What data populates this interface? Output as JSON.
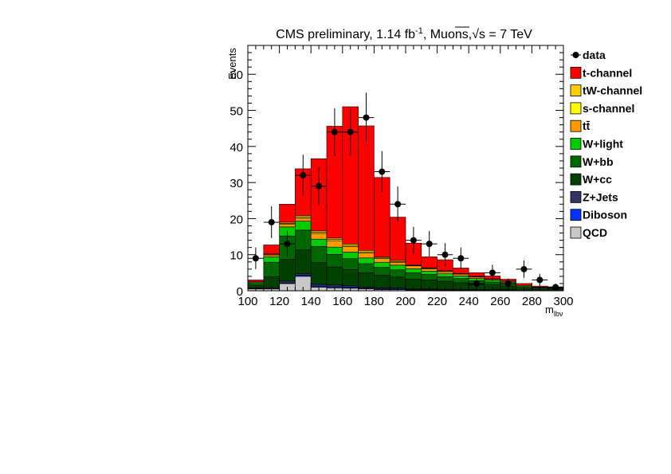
{
  "chart_data": {
    "type": "bar",
    "stacked": true,
    "title_parts": {
      "pre": "CMS preliminary, 1.14 fb",
      "sup": "-1",
      "mid": ", Muons,",
      "sqrt": "√s",
      "post": " = 7 TeV"
    },
    "ylabel": "Events",
    "xlabel_main": "m",
    "xlabel_sub": "lbν",
    "xlim": [
      100,
      300
    ],
    "ylim": [
      0,
      68
    ],
    "x_ticks": [
      "100",
      "120",
      "140",
      "160",
      "180",
      "200",
      "220",
      "240",
      "260",
      "280",
      "300"
    ],
    "y_ticks": [
      "0",
      "10",
      "20",
      "30",
      "40",
      "50",
      "60"
    ],
    "bin_edges": [
      100,
      110,
      120,
      130,
      140,
      150,
      160,
      170,
      180,
      190,
      200,
      210,
      220,
      230,
      240,
      250,
      260,
      270,
      280,
      290,
      300
    ],
    "series": [
      {
        "name": "QCD",
        "color": "#c8c8c8",
        "values": [
          0.5,
          0.5,
          2.0,
          4.0,
          1.0,
          0.8,
          0.7,
          0.5,
          0.3,
          0.3,
          0.2,
          0.2,
          0.1,
          0.1,
          0.1,
          0.1,
          0.1,
          0.0,
          0.0,
          0.0
        ]
      },
      {
        "name": "Diboson",
        "color": "#0033ff",
        "values": [
          0.1,
          0.1,
          0.2,
          0.3,
          0.3,
          0.3,
          0.3,
          0.2,
          0.2,
          0.2,
          0.1,
          0.1,
          0.1,
          0.1,
          0.1,
          0.1,
          0.1,
          0.0,
          0.0,
          0.0
        ]
      },
      {
        "name": "Z+Jets",
        "color": "#333366",
        "values": [
          0.2,
          0.3,
          0.5,
          0.5,
          0.5,
          0.5,
          0.4,
          0.3,
          0.3,
          0.3,
          0.2,
          0.2,
          0.2,
          0.2,
          0.1,
          0.1,
          0.1,
          0.1,
          0.0,
          0.0
        ]
      },
      {
        "name": "W+cc",
        "color": "#004000",
        "values": [
          0.6,
          3.0,
          6.0,
          6.5,
          6.0,
          5.0,
          4.5,
          4.0,
          3.5,
          3.0,
          2.7,
          2.5,
          2.2,
          1.8,
          1.5,
          1.3,
          1.0,
          0.5,
          0.4,
          0.3
        ]
      },
      {
        "name": "W+bb",
        "color": "#006600",
        "values": [
          0.6,
          4.0,
          6.5,
          5.5,
          4.5,
          3.5,
          3.0,
          2.5,
          2.2,
          2.0,
          1.8,
          1.5,
          1.3,
          1.2,
          1.0,
          0.8,
          0.6,
          0.4,
          0.3,
          0.2
        ]
      },
      {
        "name": "W+light",
        "color": "#00cc00",
        "values": [
          0.3,
          1.5,
          2.5,
          2.5,
          2.0,
          2.0,
          1.8,
          1.6,
          1.4,
          1.3,
          1.1,
          0.9,
          0.8,
          0.7,
          0.6,
          0.5,
          0.4,
          0.3,
          0.2,
          0.2
        ]
      },
      {
        "name": "tt̄",
        "color": "#ff9900",
        "values": [
          0.2,
          0.5,
          0.8,
          0.8,
          1.6,
          1.8,
          1.6,
          1.4,
          1.0,
          0.8,
          0.8,
          0.7,
          0.6,
          0.5,
          0.4,
          0.3,
          0.3,
          0.2,
          0.1,
          0.1
        ]
      },
      {
        "name": "s-channel",
        "color": "#ffff00",
        "values": [
          0.0,
          0.1,
          0.2,
          0.3,
          0.3,
          0.3,
          0.3,
          0.3,
          0.2,
          0.2,
          0.1,
          0.1,
          0.1,
          0.1,
          0.1,
          0.0,
          0.0,
          0.0,
          0.0,
          0.0
        ]
      },
      {
        "name": "tW-channel",
        "color": "#ffcc00",
        "values": [
          0.0,
          0.2,
          0.3,
          0.4,
          0.4,
          0.4,
          0.4,
          0.4,
          0.3,
          0.3,
          0.2,
          0.2,
          0.2,
          0.1,
          0.1,
          0.1,
          0.1,
          0.0,
          0.0,
          0.0
        ]
      },
      {
        "name": "t-channel",
        "color": "#ff0000",
        "values": [
          0.5,
          2.5,
          5.0,
          13.0,
          20.0,
          31.0,
          38.0,
          34.5,
          22.0,
          12.0,
          6.0,
          3.0,
          3.0,
          1.5,
          1.0,
          0.8,
          0.5,
          0.5,
          0.3,
          0.3
        ]
      }
    ],
    "data_points": {
      "name": "data",
      "x": [
        105,
        115,
        125,
        135,
        145,
        155,
        165,
        175,
        185,
        195,
        205,
        215,
        225,
        235,
        245,
        255,
        265,
        275,
        285,
        295
      ],
      "y": [
        9,
        19,
        13,
        32,
        29,
        44,
        44,
        48,
        33,
        24,
        14,
        13,
        10,
        9,
        2,
        5,
        2,
        6,
        3,
        1
      ],
      "yerr": [
        3.0,
        4.4,
        3.6,
        5.7,
        5.4,
        6.6,
        6.6,
        6.9,
        5.7,
        4.9,
        3.7,
        3.6,
        3.2,
        3.0,
        1.4,
        2.2,
        1.4,
        2.4,
        1.7,
        1.0
      ]
    },
    "legend": [
      "data",
      "t-channel",
      "tW-channel",
      "s-channel",
      "tt̄",
      "W+light",
      "W+bb",
      "W+cc",
      "Z+Jets",
      "Diboson",
      "QCD"
    ],
    "legend_position": "right"
  }
}
